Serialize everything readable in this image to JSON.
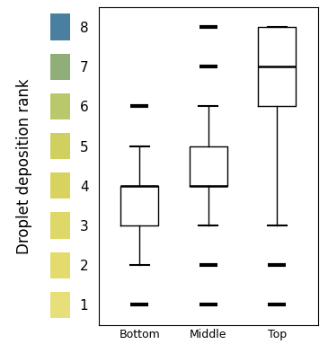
{
  "chart_data": {
    "type": "box",
    "y_label": "Droplet deposition rank",
    "categories": [
      "Bottom",
      "Middle",
      "Top"
    ],
    "stats": [
      {
        "whislo": 2,
        "q1": 3,
        "med": 4,
        "q3": 4,
        "whishi": 5,
        "fliers": [
          6,
          1
        ]
      },
      {
        "whislo": 3,
        "q1": 4,
        "med": 4,
        "q3": 5,
        "whishi": 6,
        "fliers": [
          7,
          8,
          2,
          1
        ]
      },
      {
        "whislo": 3,
        "q1": 6,
        "med": 7,
        "q3": 8,
        "whishi": 8,
        "fliers": [
          2,
          1
        ]
      }
    ],
    "ylim": [
      0.5,
      8.5
    ],
    "yticks": [
      1,
      2,
      3,
      4,
      5,
      6,
      7,
      8
    ],
    "color": "#000000",
    "grid": false
  }
}
